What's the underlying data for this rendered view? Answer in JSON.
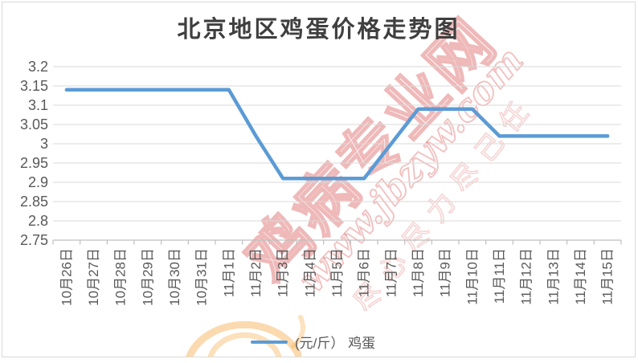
{
  "title": "北京地区鸡蛋价格走势图",
  "legend": {
    "label": "(元/斤） 鸡蛋"
  },
  "watermark": {
    "site_name": "鸡病专业网",
    "site_url": "www.jbzyw.com",
    "slogan": "尽心尽力尽己任"
  },
  "colors": {
    "line": "#5B9BD5",
    "gridline": "#D9D9D9",
    "axis": "#BFBFBF",
    "label": "#595959",
    "title": "#3F3F3F",
    "watermark_pink": "#E07676",
    "watermark_orange": "#F6AD4D"
  },
  "chart_data": {
    "type": "line",
    "title": "北京地区鸡蛋价格走势图",
    "categories": [
      "10月26日",
      "10月27日",
      "10月28日",
      "10月29日",
      "10月30日",
      "10月31日",
      "11月1日",
      "11月2日",
      "11月3日",
      "11月4日",
      "11月5日",
      "11月6日",
      "11月7日",
      "11月8日",
      "11月9日",
      "11月10日",
      "11月11日",
      "11月12日",
      "11月13日",
      "11月14日",
      "11月15日"
    ],
    "series": [
      {
        "name": "(元/斤） 鸡蛋",
        "values": [
          3.14,
          3.14,
          3.14,
          3.14,
          3.14,
          3.14,
          3.14,
          3.02,
          2.91,
          2.91,
          2.91,
          2.91,
          3.0,
          3.09,
          3.09,
          3.09,
          3.02,
          3.02,
          3.02,
          3.02,
          3.02
        ]
      }
    ],
    "xlabel": "",
    "ylabel": "",
    "ylim": [
      2.75,
      3.2
    ],
    "ytick_step": 0.05,
    "ytick_labels": [
      "3.2",
      "3.15",
      "3.1",
      "3.05",
      "3",
      "2.95",
      "2.9",
      "2.85",
      "2.8",
      "2.75"
    ],
    "grid": true,
    "legend_position": "bottom"
  }
}
